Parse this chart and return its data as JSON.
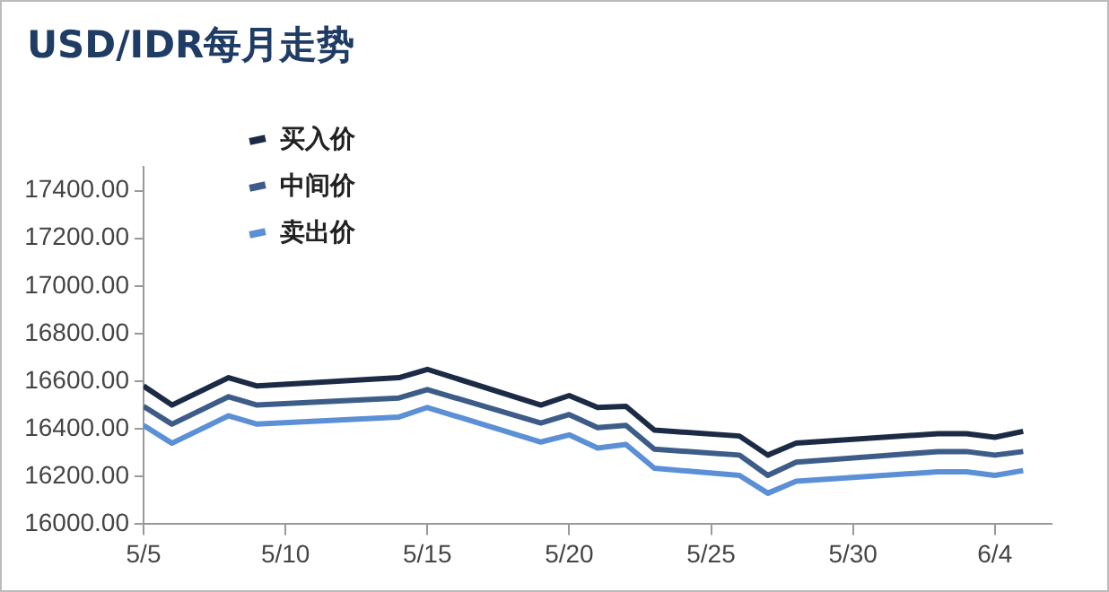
{
  "chart_data": {
    "type": "line",
    "title": "USD/IDR每月走势",
    "x": [
      "--05-05",
      "--05-06",
      "--05-08",
      "--05-09",
      "--05-14",
      "--05-15",
      "--05-19",
      "--05-20",
      "--05-21",
      "--05-22",
      "--05-23",
      "--05-26",
      "--05-27",
      "--05-28",
      "--06-02",
      "--06-03",
      "--06-04",
      "--06-05"
    ],
    "series": [
      {
        "name": "买入价",
        "color": "#1c2b45",
        "values": [
          16580,
          16500,
          16615,
          16580,
          16615,
          16650,
          16500,
          16540,
          16490,
          16495,
          16395,
          16370,
          16290,
          16340,
          16380,
          16380,
          16365,
          16390
        ]
      },
      {
        "name": "中间价",
        "color": "#3d5d88",
        "values": [
          16495,
          16420,
          16535,
          16500,
          16530,
          16565,
          16425,
          16460,
          16405,
          16415,
          16315,
          16290,
          16205,
          16260,
          16305,
          16305,
          16290,
          16305
        ]
      },
      {
        "name": "卖出价",
        "color": "#5b8fd6",
        "values": [
          16415,
          16340,
          16455,
          16420,
          16450,
          16490,
          16345,
          16375,
          16320,
          16335,
          16235,
          16205,
          16130,
          16180,
          16220,
          16220,
          16205,
          16225
        ]
      }
    ],
    "xlim": [
      "--05-05",
      "--06-06"
    ],
    "xticks": [
      {
        "value": "--05-05",
        "label": "5/5"
      },
      {
        "value": "--05-10",
        "label": "5/10"
      },
      {
        "value": "--05-15",
        "label": "5/15"
      },
      {
        "value": "--05-20",
        "label": "5/20"
      },
      {
        "value": "--05-25",
        "label": "5/25"
      },
      {
        "value": "--05-30",
        "label": "5/30"
      },
      {
        "value": "--06-04",
        "label": "6/4"
      }
    ],
    "ylim": [
      16000,
      17500
    ],
    "yticks": [
      {
        "value": 16000,
        "label": "16000.00"
      },
      {
        "value": 16200,
        "label": "16200.00"
      },
      {
        "value": 16400,
        "label": "16400.00"
      },
      {
        "value": 16600,
        "label": "16600.00"
      },
      {
        "value": 16800,
        "label": "16800.00"
      },
      {
        "value": 17000,
        "label": "17000.00"
      },
      {
        "value": 17200,
        "label": "17200.00"
      },
      {
        "value": 17400,
        "label": "17400.00"
      }
    ],
    "grid": false,
    "legend": "top left",
    "marker": "none",
    "line_style": "solid"
  }
}
